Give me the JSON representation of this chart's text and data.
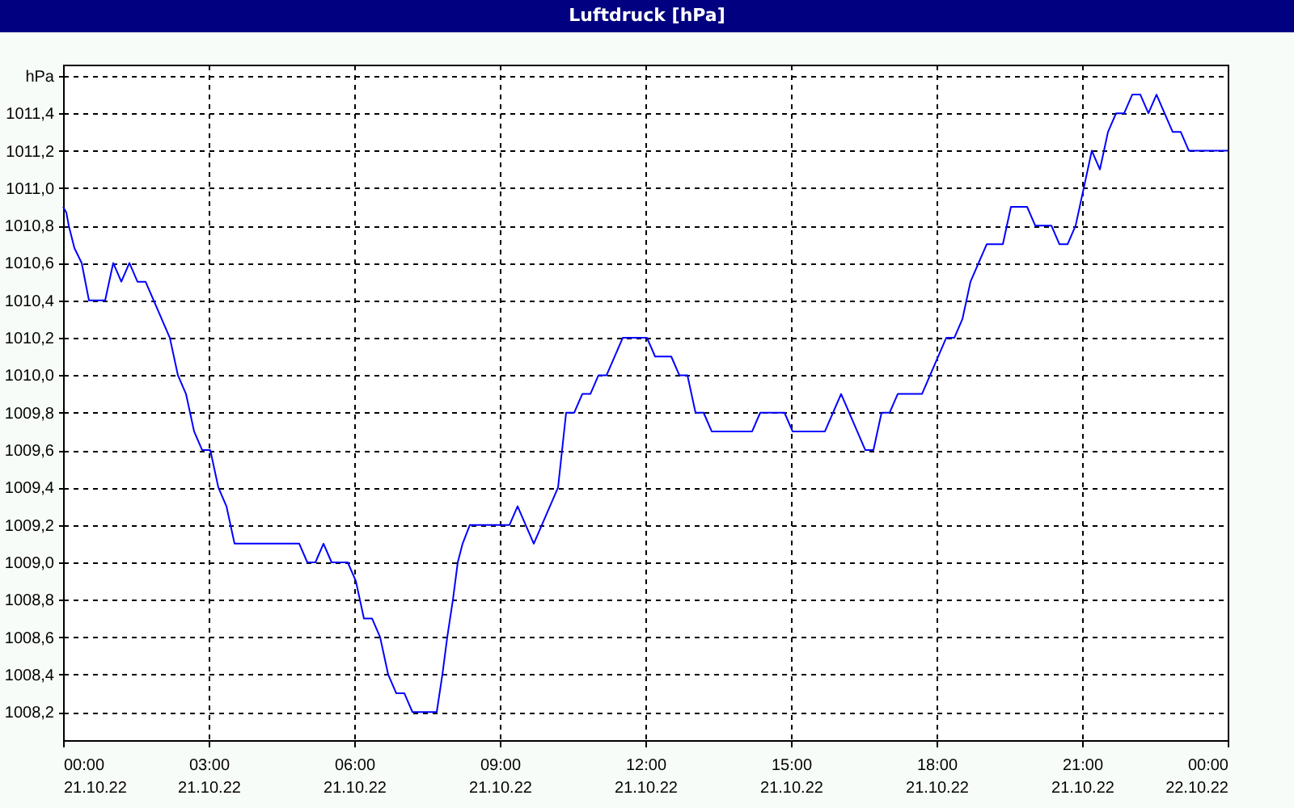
{
  "chart_data": {
    "type": "line",
    "title": "Luftdruck [hPa]",
    "x": [
      "--10-21T00:00",
      "--10-21T00:04",
      "--10-21T00:07",
      "--10-21T00:14",
      "--10-21T00:23",
      "--10-21T00:32",
      "--10-21T00:52",
      "--10-21T01:02",
      "--10-21T01:12",
      "--10-21T01:22",
      "--10-21T01:32",
      "--10-21T01:42",
      "--10-21T02:12",
      "--10-21T02:22",
      "--10-21T02:32",
      "--10-21T02:42",
      "--10-21T02:52",
      "--10-21T03:02",
      "--10-21T03:12",
      "--10-21T03:22",
      "--10-21T03:32",
      "--10-21T04:52",
      "--10-21T05:02",
      "--10-21T05:12",
      "--10-21T05:22",
      "--10-21T05:32",
      "--10-21T05:52",
      "--10-21T06:02",
      "--10-21T06:12",
      "--10-21T06:22",
      "--10-21T06:32",
      "--10-21T06:42",
      "--10-21T06:52",
      "--10-21T07:02",
      "--10-21T07:12",
      "--10-21T07:42",
      "--10-21T07:49",
      "--10-21T07:55",
      "--10-21T08:02",
      "--10-21T08:08",
      "--10-21T08:14",
      "--10-21T08:23",
      "--10-21T09:12",
      "--10-21T09:22",
      "--10-21T09:42",
      "--10-21T10:12",
      "--10-21T10:22",
      "--10-21T10:32",
      "--10-21T10:42",
      "--10-21T10:52",
      "--10-21T11:02",
      "--10-21T11:12",
      "--10-21T11:32",
      "--10-21T12:02",
      "--10-21T12:12",
      "--10-21T12:32",
      "--10-21T12:42",
      "--10-21T12:52",
      "--10-21T13:02",
      "--10-21T13:12",
      "--10-21T13:22",
      "--10-21T14:12",
      "--10-21T14:22",
      "--10-21T14:52",
      "--10-21T15:02",
      "--10-21T15:42",
      "--10-21T16:02",
      "--10-21T16:32",
      "--10-21T16:42",
      "--10-21T16:52",
      "--10-21T17:02",
      "--10-21T17:12",
      "--10-21T17:42",
      "--10-21T18:12",
      "--10-21T18:22",
      "--10-21T18:32",
      "--10-21T18:42",
      "--10-21T19:02",
      "--10-21T19:22",
      "--10-21T19:32",
      "--10-21T19:52",
      "--10-21T20:02",
      "--10-21T20:22",
      "--10-21T20:32",
      "--10-21T20:42",
      "--10-21T20:52",
      "--10-21T21:02",
      "--10-21T21:12",
      "--10-21T21:22",
      "--10-21T21:32",
      "--10-21T21:42",
      "--10-21T21:52",
      "--10-21T22:02",
      "--10-21T22:12",
      "--10-21T22:22",
      "--10-21T22:32",
      "--10-21T22:52",
      "--10-21T23:02",
      "--10-21T23:12",
      "--10-22T00:00"
    ],
    "series": [
      {
        "color": "#0000ff",
        "values": [
          1010.9,
          1010.87,
          1010.8,
          1010.68,
          1010.6,
          1010.4,
          1010.4,
          1010.6,
          1010.5,
          1010.6,
          1010.5,
          1010.5,
          1010.2,
          1010.0,
          1009.9,
          1009.7,
          1009.6,
          1009.6,
          1009.4,
          1009.3,
          1009.1,
          1009.1,
          1009.0,
          1009.0,
          1009.1,
          1009.0,
          1009.0,
          1008.9,
          1008.7,
          1008.7,
          1008.6,
          1008.4,
          1008.3,
          1008.3,
          1008.2,
          1008.2,
          1008.4,
          1008.6,
          1008.8,
          1009.0,
          1009.1,
          1009.2,
          1009.2,
          1009.3,
          1009.1,
          1009.4,
          1009.8,
          1009.8,
          1009.9,
          1009.9,
          1010.0,
          1010.0,
          1010.2,
          1010.2,
          1010.1,
          1010.1,
          1010.0,
          1010.0,
          1009.8,
          1009.8,
          1009.7,
          1009.7,
          1009.8,
          1009.8,
          1009.7,
          1009.7,
          1009.9,
          1009.6,
          1009.6,
          1009.8,
          1009.8,
          1009.9,
          1009.9,
          1010.2,
          1010.2,
          1010.3,
          1010.5,
          1010.7,
          1010.7,
          1010.9,
          1010.9,
          1010.8,
          1010.8,
          1010.7,
          1010.7,
          1010.8,
          1011.0,
          1011.2,
          1011.1,
          1011.3,
          1011.4,
          1011.4,
          1011.5,
          1011.5,
          1011.4,
          1011.5,
          1011.3,
          1011.3,
          1011.2,
          1011.2
        ]
      }
    ],
    "xlim": [
      "--10-21T00:00",
      "--10-22T00:00"
    ],
    "xticks": [
      {
        "value": "--10-21T00:00",
        "label": "00:00\n21.10.22"
      },
      {
        "value": "--10-21T03:00",
        "label": "03:00\n21.10.22"
      },
      {
        "value": "--10-21T06:00",
        "label": "06:00\n21.10.22"
      },
      {
        "value": "--10-21T09:00",
        "label": "09:00\n21.10.22"
      },
      {
        "value": "--10-21T12:00",
        "label": "12:00\n21.10.22"
      },
      {
        "value": "--10-21T15:00",
        "label": "15:00\n21.10.22"
      },
      {
        "value": "--10-21T18:00",
        "label": "18:00\n21.10.22"
      },
      {
        "value": "--10-21T21:00",
        "label": "21:00\n21.10.22"
      },
      {
        "value": "--10-22T00:00",
        "label": "00:00\n22.10.22"
      }
    ],
    "ylim": [
      1008.05,
      1011.66
    ],
    "yticks": [
      {
        "value": 1008.2,
        "label": "1008,2"
      },
      {
        "value": 1008.4,
        "label": "1008,4"
      },
      {
        "value": 1008.6,
        "label": "1008,6"
      },
      {
        "value": 1008.8,
        "label": "1008,8"
      },
      {
        "value": 1009.0,
        "label": "1009,0"
      },
      {
        "value": 1009.2,
        "label": "1009,2"
      },
      {
        "value": 1009.4,
        "label": "1009,4"
      },
      {
        "value": 1009.6,
        "label": "1009,6"
      },
      {
        "value": 1009.8,
        "label": "1009,8"
      },
      {
        "value": 1010.0,
        "label": "1010,0"
      },
      {
        "value": 1010.2,
        "label": "1010,2"
      },
      {
        "value": 1010.4,
        "label": "1010,4"
      },
      {
        "value": 1010.6,
        "label": "1010,6"
      },
      {
        "value": 1010.8,
        "label": "1010,8"
      },
      {
        "value": 1011.0,
        "label": "1011,0"
      },
      {
        "value": 1011.2,
        "label": "1011,2"
      },
      {
        "value": 1011.4,
        "label": "1011,4"
      },
      {
        "value": 1011.6,
        "label": "hPa"
      }
    ],
    "grid": true
  }
}
